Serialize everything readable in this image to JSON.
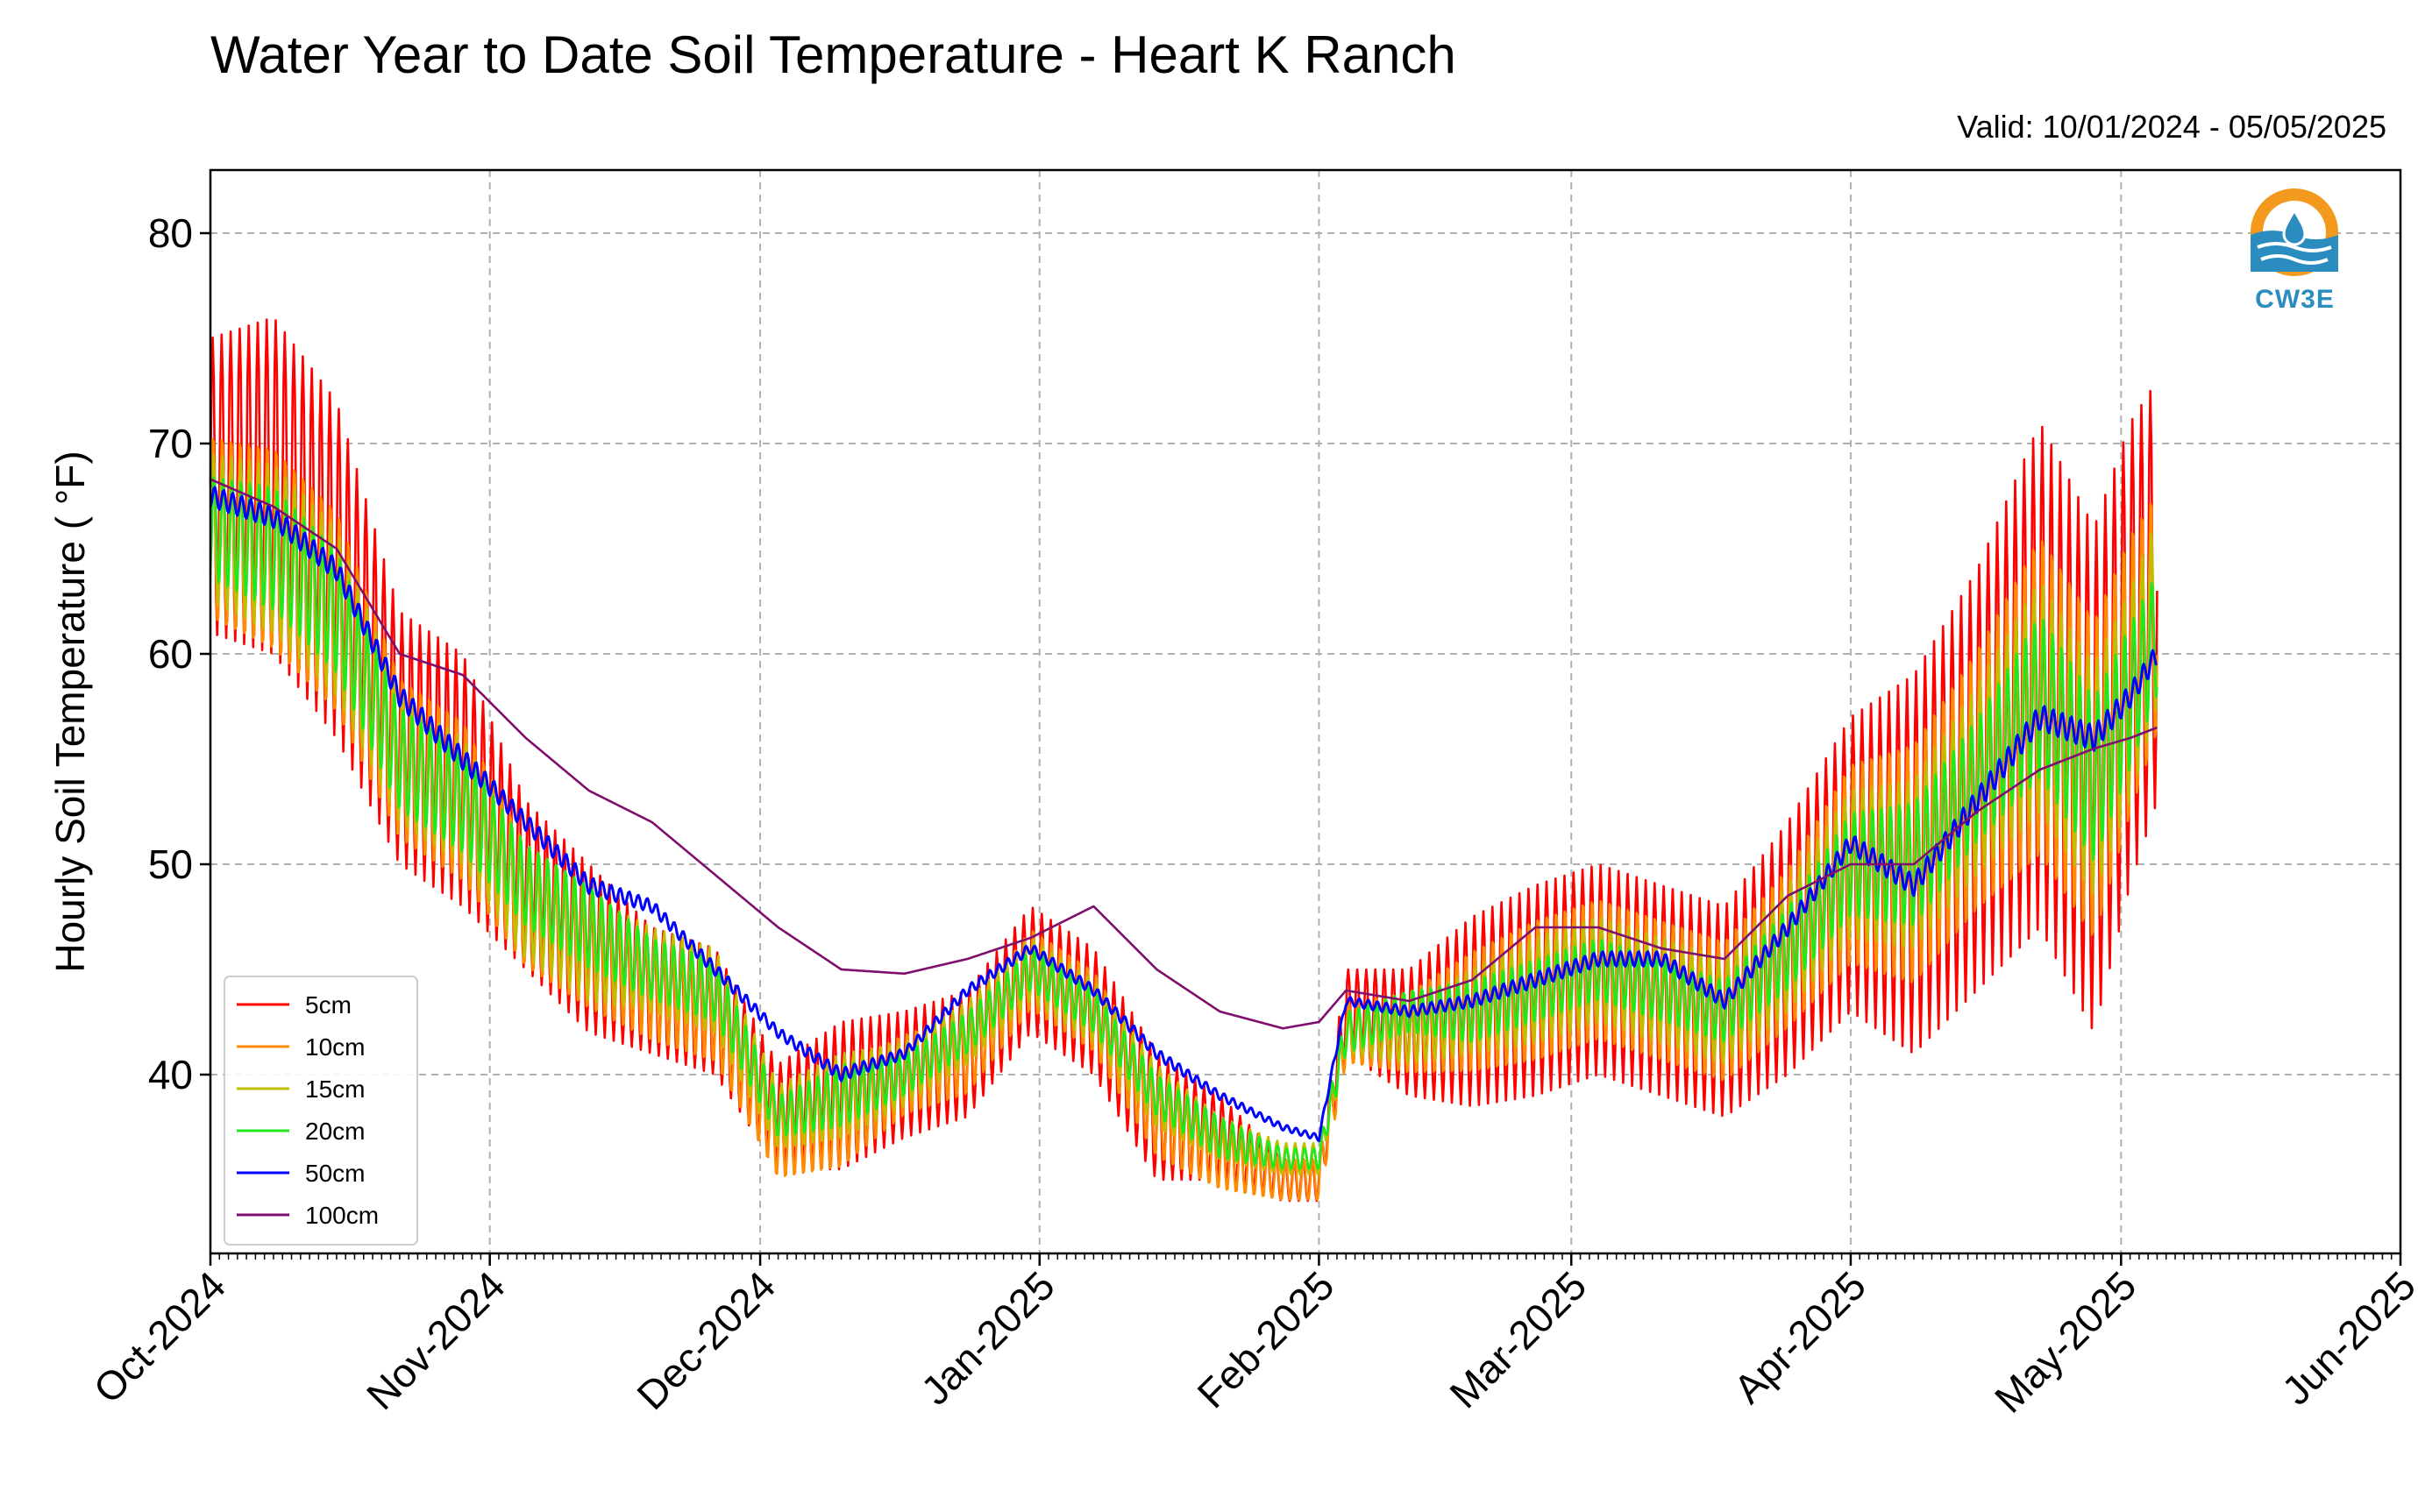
{
  "chart_data": {
    "type": "line",
    "title": "Water Year to Date Soil Temperature - Heart K Ranch",
    "subtitle": "Valid: 10/01/2024 - 05/05/2025",
    "xlabel": "",
    "ylabel": "Hourly Soil Temperature ( °F)",
    "x_ticks": [
      "Oct-2024",
      "Nov-2024",
      "Dec-2024",
      "Jan-2025",
      "Feb-2025",
      "Mar-2025",
      "Apr-2025",
      "May-2025",
      "Jun-2025"
    ],
    "y_ticks": [
      40,
      50,
      60,
      70,
      80
    ],
    "xlim": [
      "2024-10-01",
      "2025-06-01"
    ],
    "ylim": [
      31.5,
      83
    ],
    "grid": true,
    "legend_position": "lower-left",
    "logo_text": "CW3E",
    "x": [
      "2024-10-01",
      "2024-10-08",
      "2024-10-15",
      "2024-10-22",
      "2024-10-29",
      "2024-11-05",
      "2024-11-12",
      "2024-11-19",
      "2024-11-26",
      "2024-12-03",
      "2024-12-10",
      "2024-12-17",
      "2024-12-24",
      "2024-12-31",
      "2025-01-07",
      "2025-01-14",
      "2025-01-21",
      "2025-01-28",
      "2025-02-01",
      "2025-02-04",
      "2025-02-11",
      "2025-02-18",
      "2025-02-25",
      "2025-03-04",
      "2025-03-11",
      "2025-03-18",
      "2025-03-25",
      "2025-04-01",
      "2025-04-08",
      "2025-04-15",
      "2025-04-22",
      "2025-04-28",
      "2025-05-02",
      "2025-05-05"
    ],
    "series": [
      {
        "name": "5cm",
        "color": "#ff0000",
        "daily_range": [
          14,
          16,
          16,
          12,
          12,
          8,
          8,
          6,
          6,
          5,
          7,
          6,
          6,
          6,
          6,
          6,
          4,
          2,
          2,
          4,
          6,
          9,
          10,
          10,
          10,
          10,
          12,
          14,
          18,
          20,
          24,
          24,
          22,
          20
        ],
        "values": [
          68,
          68,
          64,
          56,
          54,
          49,
          46,
          44,
          43,
          38,
          39,
          40,
          41,
          45,
          43,
          38,
          37,
          35,
          35,
          43,
          42,
          43,
          44,
          45,
          44,
          43,
          46,
          50,
          50,
          54,
          59,
          54,
          60,
          63
        ]
      },
      {
        "name": "10cm",
        "color": "#ff8c00",
        "daily_range": [
          9,
          10,
          10,
          8,
          8,
          6,
          6,
          5,
          5,
          4,
          5,
          4,
          4,
          4,
          4,
          4,
          3,
          2,
          2,
          3,
          4,
          6,
          7,
          7,
          7,
          7,
          8,
          10,
          12,
          13,
          16,
          16,
          14,
          12
        ],
        "values": [
          66,
          65,
          62,
          55,
          53,
          48,
          46,
          44,
          43,
          37,
          38,
          40,
          41,
          45,
          43,
          38,
          36,
          35,
          35,
          42,
          42,
          43,
          44,
          45,
          44,
          43,
          46,
          50,
          50,
          54,
          58,
          54,
          59,
          62
        ]
      },
      {
        "name": "15cm",
        "color": "#bfbf00",
        "daily_range": [
          7,
          8,
          8,
          6,
          6,
          5,
          5,
          4,
          4,
          3,
          4,
          3,
          3,
          3,
          3,
          3,
          2,
          1.5,
          1.5,
          2,
          3,
          4,
          5,
          5,
          5,
          5,
          6,
          7,
          8,
          9,
          11,
          11,
          10,
          9
        ],
        "values": [
          66,
          65,
          62,
          55,
          53,
          48,
          46,
          45,
          44,
          38,
          39,
          40,
          42,
          45,
          43,
          39,
          37,
          36,
          36,
          42,
          42,
          43,
          44,
          45,
          44,
          43,
          46,
          50,
          50,
          54,
          58,
          54,
          58,
          62
        ]
      },
      {
        "name": "20cm",
        "color": "#1fe81f",
        "daily_range": [
          5,
          6,
          6,
          5,
          5,
          4,
          4,
          3,
          3,
          2,
          3,
          2,
          2,
          2,
          2,
          2,
          2,
          1,
          1,
          2,
          2,
          3,
          3,
          3,
          3,
          3,
          4,
          5,
          6,
          6,
          8,
          8,
          7,
          6
        ],
        "values": [
          66,
          65,
          62,
          55,
          53,
          49,
          47,
          45,
          44,
          38,
          39,
          40,
          42,
          45,
          43,
          39,
          37,
          36,
          36,
          42,
          43,
          43,
          44,
          45,
          44,
          43,
          46,
          50,
          50,
          54,
          58,
          54,
          58,
          61
        ]
      },
      {
        "name": "50cm",
        "color": "#0000ff",
        "daily_range": [
          1,
          1,
          1,
          1,
          1,
          0.8,
          0.8,
          0.6,
          0.6,
          0.5,
          0.6,
          0.5,
          0.5,
          0.5,
          0.5,
          0.5,
          0.4,
          0.3,
          0.3,
          0.4,
          0.5,
          0.6,
          0.7,
          0.7,
          0.7,
          0.7,
          0.8,
          0.9,
          1,
          1.1,
          1.2,
          1.2,
          1.1,
          1
        ],
        "values": [
          67.5,
          66.5,
          64,
          58,
          55,
          52,
          49,
          48,
          45,
          42,
          40,
          41,
          44,
          46,
          44,
          41,
          39,
          37.5,
          37,
          43.5,
          43,
          43.5,
          44.5,
          45.5,
          45.5,
          43.5,
          47,
          51,
          49,
          53,
          57,
          56,
          58,
          60
        ]
      },
      {
        "name": "100cm",
        "color": "#7f0f6e",
        "daily_range": [
          0,
          0,
          0,
          0,
          0,
          0,
          0,
          0,
          0,
          0,
          0,
          0,
          0,
          0,
          0,
          0,
          0,
          0,
          0,
          0,
          0,
          0,
          0,
          0,
          0,
          0,
          0,
          0,
          0,
          0,
          0,
          0,
          0,
          0
        ],
        "values": [
          68.3,
          67,
          65,
          60,
          59,
          56,
          53.5,
          52,
          49.5,
          47,
          45,
          44.8,
          45.5,
          46.5,
          48,
          45,
          43,
          42.2,
          42.5,
          44,
          43.5,
          44.5,
          47,
          47,
          46,
          45.5,
          48.5,
          50,
          50,
          52.5,
          54.5,
          55.5,
          56,
          56.5
        ]
      }
    ]
  }
}
